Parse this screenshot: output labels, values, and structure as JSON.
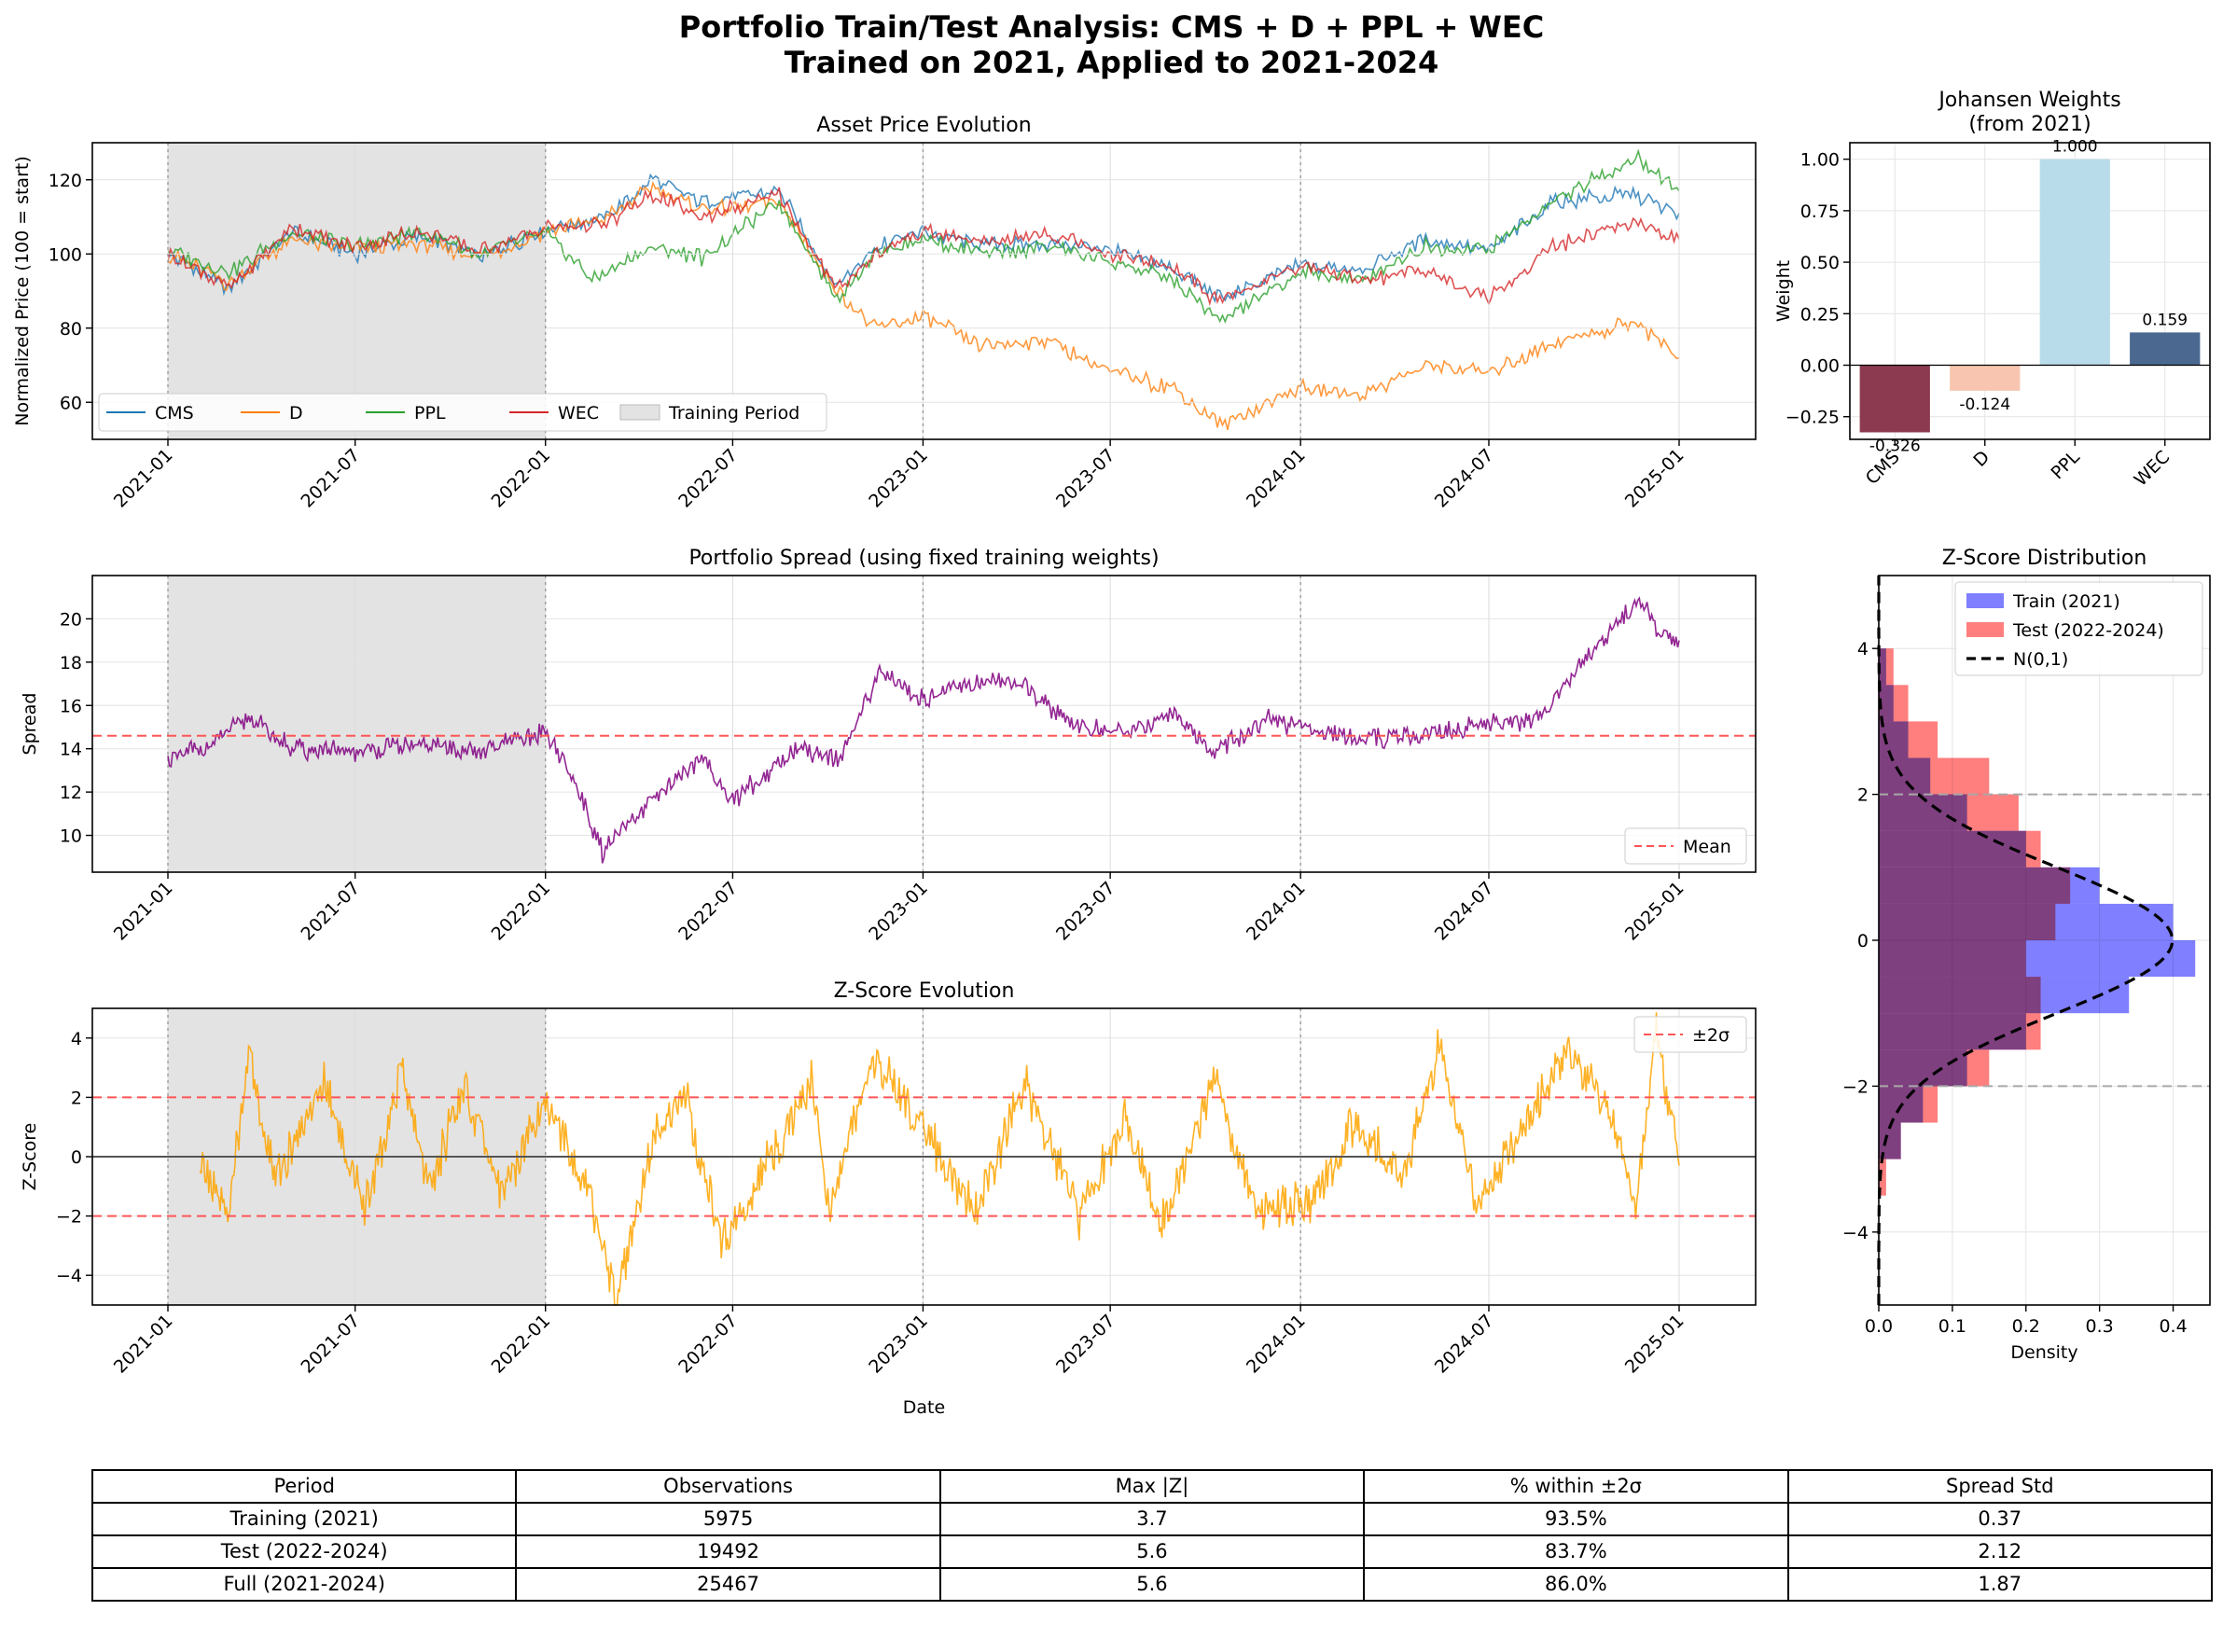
{
  "title_line1": "Portfolio Train/Test Analysis: CMS + D + PPL + WEC",
  "title_line2": "Trained on 2021, Applied to 2021-2024",
  "colors": {
    "CMS": "#1f77b4",
    "D": "#ff7f0e",
    "PPL": "#2ca02c",
    "WEC": "#d62728",
    "spread": "#800080",
    "zscore": "#ffa500",
    "train": "#0000ff",
    "test": "#ff0000"
  },
  "chart_data": [
    {
      "type": "line",
      "title": "Asset Price Evolution",
      "xlabel": "",
      "ylabel": "Normalized Price (100 = start)",
      "ylim": [
        50,
        130
      ],
      "yticks": [
        60,
        80,
        100,
        120
      ],
      "x_ticks": [
        "2021-01",
        "2021-07",
        "2022-01",
        "2022-07",
        "2023-01",
        "2023-07",
        "2024-01",
        "2024-07",
        "2025-01"
      ],
      "x_tick_dates": [
        "2021-01-01",
        "2021-07-01",
        "2022-01-01",
        "2022-07-01",
        "2023-01-01",
        "2023-07-01",
        "2024-01-01",
        "2024-07-01",
        "2025-01-01"
      ],
      "xlim": [
        "2020-11-16",
        "2025-03-18"
      ],
      "shaded_region": {
        "label": "Training Period",
        "from": "2021-01-01",
        "to": "2022-01-01"
      },
      "legend": {
        "placement": "lower-left",
        "entries": [
          "CMS",
          "D",
          "PPL",
          "WEC",
          "Training Period"
        ]
      },
      "grid": true,
      "series": [
        {
          "name": "CMS",
          "x": [
            "2021-01-01",
            "2021-03-01",
            "2021-05-01",
            "2021-07-01",
            "2021-09-01",
            "2021-11-01",
            "2022-01-01",
            "2022-03-01",
            "2022-04-15",
            "2022-06-01",
            "2022-08-15",
            "2022-10-10",
            "2022-11-15",
            "2023-01-01",
            "2023-03-01",
            "2023-05-01",
            "2023-07-01",
            "2023-09-01",
            "2023-10-15",
            "2024-01-01",
            "2024-03-01",
            "2024-05-01",
            "2024-07-01",
            "2024-09-01",
            "2024-11-20",
            "2025-01-01"
          ],
          "y": [
            100,
            91,
            106,
            100,
            105,
            99,
            107,
            110,
            120,
            114,
            117,
            91,
            102,
            106,
            102,
            103,
            101,
            96,
            88,
            97,
            96,
            104,
            101,
            114,
            116,
            111
          ]
        },
        {
          "name": "D",
          "x": [
            "2021-01-01",
            "2021-03-01",
            "2021-05-01",
            "2021-07-01",
            "2021-09-01",
            "2021-11-01",
            "2022-01-01",
            "2022-03-01",
            "2022-04-15",
            "2022-06-01",
            "2022-08-15",
            "2022-10-10",
            "2022-11-15",
            "2023-01-01",
            "2023-03-01",
            "2023-05-01",
            "2023-07-01",
            "2023-09-01",
            "2023-10-15",
            "2024-01-01",
            "2024-03-01",
            "2024-05-01",
            "2024-07-01",
            "2024-09-01",
            "2024-11-20",
            "2025-01-01"
          ],
          "y": [
            100,
            92,
            104,
            101,
            103,
            99,
            106,
            110,
            118,
            112,
            114,
            90,
            80,
            83,
            75,
            77,
            68,
            64,
            54,
            64,
            62,
            70,
            68,
            76,
            82,
            72
          ]
        },
        {
          "name": "PPL",
          "x": [
            "2021-01-01",
            "2021-03-01",
            "2021-05-01",
            "2021-07-01",
            "2021-09-01",
            "2021-11-01",
            "2022-01-01",
            "2022-02-15",
            "2022-04-15",
            "2022-06-01",
            "2022-08-15",
            "2022-10-10",
            "2022-11-15",
            "2023-01-01",
            "2023-03-01",
            "2023-05-01",
            "2023-07-01",
            "2023-09-01",
            "2023-10-15",
            "2024-01-01",
            "2024-03-01",
            "2024-05-01",
            "2024-07-01",
            "2024-09-01",
            "2024-11-20",
            "2025-01-01"
          ],
          "y": [
            101,
            95,
            106,
            102,
            106,
            100,
            106,
            93,
            102,
            99,
            114,
            88,
            100,
            104,
            100,
            102,
            98,
            93,
            82,
            95,
            93,
            102,
            101,
            114,
            126,
            117
          ]
        },
        {
          "name": "WEC",
          "x": [
            "2021-01-01",
            "2021-03-01",
            "2021-05-01",
            "2021-07-01",
            "2021-09-01",
            "2021-11-01",
            "2022-01-01",
            "2022-03-01",
            "2022-04-15",
            "2022-06-01",
            "2022-08-15",
            "2022-10-10",
            "2022-11-15",
            "2023-01-01",
            "2023-03-01",
            "2023-05-01",
            "2023-07-01",
            "2023-09-01",
            "2023-10-15",
            "2024-01-01",
            "2024-03-01",
            "2024-05-01",
            "2024-07-01",
            "2024-09-01",
            "2024-11-20",
            "2025-01-01"
          ],
          "y": [
            100,
            91,
            107,
            102,
            106,
            101,
            107,
            108,
            116,
            110,
            116,
            90,
            100,
            106,
            103,
            106,
            100,
            96,
            87,
            97,
            93,
            96,
            88,
            102,
            109,
            104
          ]
        }
      ]
    },
    {
      "type": "bar",
      "title": "Johansen Weights",
      "subtitle": "(from 2021)",
      "xlabel": "",
      "ylabel": "Weight",
      "ylim": [
        -0.36,
        1.08
      ],
      "yticks": [
        -0.25,
        0.0,
        0.25,
        0.5,
        0.75,
        1.0
      ],
      "ytick_labels": [
        "−0.25",
        "0.00",
        "0.25",
        "0.50",
        "0.75",
        "1.00"
      ],
      "categories": [
        "CMS",
        "D",
        "PPL",
        "WEC"
      ],
      "values": [
        -0.326,
        -0.124,
        1.0,
        0.159
      ],
      "data_labels": [
        "-0.326",
        "-0.124",
        "1.000",
        "0.159"
      ],
      "bar_colors": [
        "#8b3a50",
        "#f8c6b0",
        "#b9dcea",
        "#4a6890"
      ],
      "grid": true
    },
    {
      "type": "line",
      "title": "Portfolio Spread (using fixed training weights)",
      "xlabel": "",
      "ylabel": "Spread",
      "ylim": [
        8.3,
        22
      ],
      "yticks": [
        10,
        12,
        14,
        16,
        18,
        20
      ],
      "x_ticks": [
        "2021-01",
        "2021-07",
        "2022-01",
        "2022-07",
        "2023-01",
        "2023-07",
        "2024-01",
        "2024-07",
        "2025-01"
      ],
      "shaded_region": {
        "from": "2021-01-01",
        "to": "2022-01-01"
      },
      "hline": {
        "label": "Mean",
        "y": 14.6
      },
      "legend": {
        "placement": "lower-right",
        "entries": [
          "Mean"
        ]
      },
      "grid": true,
      "series": [
        {
          "x": [
            "2021-01-01",
            "2021-02-15",
            "2021-03-20",
            "2021-05-01",
            "2021-07-01",
            "2021-09-01",
            "2021-11-01",
            "2022-01-01",
            "2022-02-01",
            "2022-02-25",
            "2022-04-01",
            "2022-06-01",
            "2022-07-01",
            "2022-09-01",
            "2022-10-15",
            "2022-11-20",
            "2023-01-01",
            "2023-02-01",
            "2023-04-01",
            "2023-06-01",
            "2023-07-15",
            "2023-09-01",
            "2023-10-10",
            "2023-12-01",
            "2024-01-01",
            "2024-03-01",
            "2024-05-01",
            "2024-07-01",
            "2024-08-15",
            "2024-10-01",
            "2024-11-25",
            "2024-12-10",
            "2025-01-01"
          ],
          "y": [
            13.5,
            14.3,
            15.5,
            14.0,
            13.8,
            14.2,
            13.9,
            14.8,
            12.2,
            9.2,
            11.0,
            13.6,
            11.6,
            14.0,
            13.6,
            17.6,
            16.2,
            17.0,
            17.1,
            15.0,
            14.8,
            15.6,
            13.8,
            15.4,
            15.0,
            14.4,
            14.6,
            15.2,
            15.3,
            18.0,
            21.0,
            19.5,
            19.0
          ]
        }
      ]
    },
    {
      "type": "line",
      "title": "Z-Score Evolution",
      "xlabel": "Date",
      "ylabel": "Z-Score",
      "ylim": [
        -5,
        5
      ],
      "yticks": [
        -4,
        -2,
        0,
        2,
        4
      ],
      "ytick_labels": [
        "−4",
        "−2",
        "0",
        "2",
        "4"
      ],
      "x_ticks": [
        "2021-01",
        "2021-07",
        "2022-01",
        "2022-07",
        "2023-01",
        "2023-07",
        "2024-01",
        "2024-07",
        "2025-01"
      ],
      "shaded_region": {
        "from": "2021-01-01",
        "to": "2022-01-01"
      },
      "hlines": [
        2,
        -2,
        0
      ],
      "legend": {
        "placement": "top-right",
        "entries": [
          "±2σ"
        ]
      },
      "grid": true,
      "series": [
        {
          "x": [
            "2021-02-01",
            "2021-03-01",
            "2021-03-20",
            "2021-04-15",
            "2021-06-01",
            "2021-07-10",
            "2021-08-15",
            "2021-09-10",
            "2021-10-15",
            "2021-11-20",
            "2022-01-01",
            "2022-02-10",
            "2022-03-10",
            "2022-04-15",
            "2022-05-15",
            "2022-06-20",
            "2022-08-15",
            "2022-09-15",
            "2022-10-01",
            "2022-11-15",
            "2023-01-15",
            "2023-02-20",
            "2023-04-10",
            "2023-06-01",
            "2023-07-15",
            "2023-08-20",
            "2023-10-10",
            "2023-11-20",
            "2024-01-15",
            "2024-02-20",
            "2024-04-10",
            "2024-05-15",
            "2024-06-20",
            "2024-08-01",
            "2024-09-15",
            "2024-10-20",
            "2024-11-20",
            "2024-12-10",
            "2025-01-01"
          ],
          "y": [
            -0.3,
            -1.8,
            3.5,
            -0.8,
            2.5,
            -1.8,
            2.8,
            -1.0,
            2.3,
            -1.2,
            2.0,
            -1.0,
            -4.8,
            0.5,
            2.2,
            -2.8,
            0.5,
            2.6,
            -1.8,
            3.4,
            0.2,
            -1.8,
            2.5,
            -2.0,
            1.2,
            -2.2,
            2.6,
            -1.8,
            -1.5,
            1.0,
            -0.5,
            3.8,
            -1.6,
            0.8,
            3.6,
            2.0,
            -1.5,
            4.2,
            -0.3
          ]
        }
      ]
    },
    {
      "type": "bar",
      "title": "Z-Score Distribution",
      "xlabel": "Density",
      "ylabel": "",
      "orientation": "horizontal",
      "xlim": [
        0,
        0.45
      ],
      "ylim": [
        -5,
        5
      ],
      "xticks": [
        0.0,
        0.1,
        0.2,
        0.3,
        0.4
      ],
      "xtick_labels": [
        "0.0",
        "0.1",
        "0.2",
        "0.3",
        "0.4"
      ],
      "yticks": [
        -4,
        -2,
        0,
        2,
        4
      ],
      "ytick_labels": [
        "−4",
        "−2",
        "0",
        "2",
        "4"
      ],
      "hlines": [
        2,
        -2
      ],
      "legend": {
        "placement": "top-right",
        "entries": [
          "Train (2021)",
          "Test (2022-2024)",
          "N(0,1)"
        ]
      },
      "grid": true,
      "bin_edges": [
        -4.0,
        -3.5,
        -3.0,
        -2.5,
        -2.0,
        -1.5,
        -1.0,
        -0.5,
        0.0,
        0.5,
        1.0,
        1.5,
        2.0,
        2.5,
        3.0,
        3.5,
        4.0
      ],
      "series": [
        {
          "name": "Train (2021)",
          "values": [
            0.0,
            0.0,
            0.03,
            0.06,
            0.12,
            0.2,
            0.34,
            0.43,
            0.4,
            0.3,
            0.2,
            0.12,
            0.07,
            0.04,
            0.02,
            0.01
          ]
        },
        {
          "name": "Test (2022-2024)",
          "values": [
            0.0,
            0.01,
            0.03,
            0.08,
            0.15,
            0.22,
            0.22,
            0.2,
            0.24,
            0.26,
            0.22,
            0.19,
            0.15,
            0.08,
            0.04,
            0.02
          ]
        },
        {
          "name": "N(0,1)",
          "function": "normal_pdf"
        }
      ]
    }
  ],
  "table": {
    "headers": [
      "Period",
      "Observations",
      "Max |Z|",
      "% within ±2σ",
      "Spread Std"
    ],
    "rows": [
      [
        "Training (2021)",
        "5975",
        "3.7",
        "93.5%",
        "0.37"
      ],
      [
        "Test (2022-2024)",
        "19492",
        "5.6",
        "83.7%",
        "2.12"
      ],
      [
        "Full (2021-2024)",
        "25467",
        "5.6",
        "86.0%",
        "1.87"
      ]
    ]
  }
}
